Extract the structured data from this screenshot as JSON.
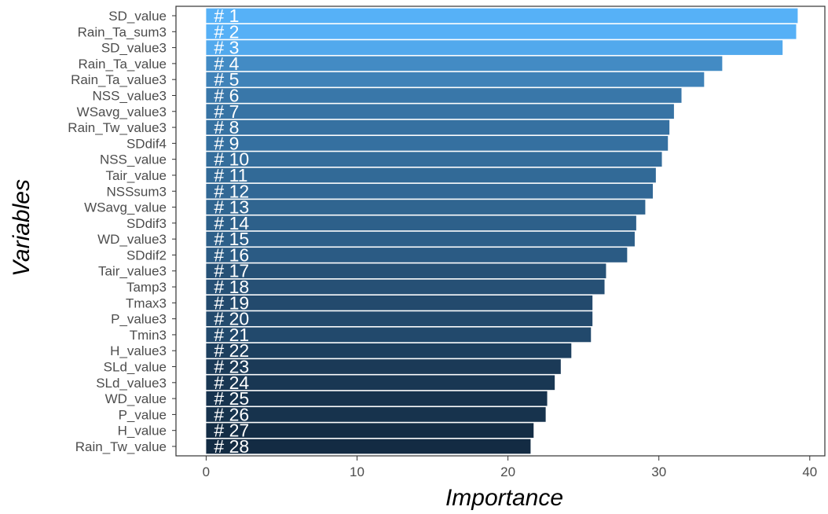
{
  "chart_data": {
    "type": "bar",
    "orientation": "horizontal",
    "xlabel": "Importance",
    "ylabel": "Variables",
    "xlim": [
      -2,
      41
    ],
    "xticks": [
      0,
      10,
      20,
      30,
      40
    ],
    "grid": false,
    "legend": "none",
    "bar_color_scale": {
      "low": "#132b43",
      "high": "#56b1f7"
    },
    "bars": [
      {
        "rank_label": "# 1",
        "category": "SD_value",
        "value": 39.2
      },
      {
        "rank_label": "# 2",
        "category": "Rain_Ta_sum3",
        "value": 39.1
      },
      {
        "rank_label": "# 3",
        "category": "SD_value3",
        "value": 38.2
      },
      {
        "rank_label": "# 4",
        "category": "Rain_Ta_value",
        "value": 34.2
      },
      {
        "rank_label": "# 5",
        "category": "Rain_Ta_value3",
        "value": 33.0
      },
      {
        "rank_label": "# 6",
        "category": "NSS_value3",
        "value": 31.5
      },
      {
        "rank_label": "# 7",
        "category": "WSavg_value3",
        "value": 31.0
      },
      {
        "rank_label": "# 8",
        "category": "Rain_Tw_value3",
        "value": 30.7
      },
      {
        "rank_label": "# 9",
        "category": "SDdif4",
        "value": 30.6
      },
      {
        "rank_label": "# 10",
        "category": "NSS_value",
        "value": 30.2
      },
      {
        "rank_label": "# 11",
        "category": "Tair_value",
        "value": 29.8
      },
      {
        "rank_label": "# 12",
        "category": "NSSsum3",
        "value": 29.6
      },
      {
        "rank_label": "# 13",
        "category": "WSavg_value",
        "value": 29.1
      },
      {
        "rank_label": "# 14",
        "category": "SDdif3",
        "value": 28.5
      },
      {
        "rank_label": "# 15",
        "category": "WD_value3",
        "value": 28.4
      },
      {
        "rank_label": "# 16",
        "category": "SDdif2",
        "value": 27.9
      },
      {
        "rank_label": "# 17",
        "category": "Tair_value3",
        "value": 26.5
      },
      {
        "rank_label": "# 18",
        "category": "Tamp3",
        "value": 26.4
      },
      {
        "rank_label": "# 19",
        "category": "Tmax3",
        "value": 25.6
      },
      {
        "rank_label": "# 20",
        "category": "P_value3",
        "value": 25.6
      },
      {
        "rank_label": "# 21",
        "category": "Tmin3",
        "value": 25.5
      },
      {
        "rank_label": "# 22",
        "category": "H_value3",
        "value": 24.2
      },
      {
        "rank_label": "# 23",
        "category": "SLd_value",
        "value": 23.5
      },
      {
        "rank_label": "# 24",
        "category": "SLd_value3",
        "value": 23.1
      },
      {
        "rank_label": "# 25",
        "category": "WD_value",
        "value": 22.6
      },
      {
        "rank_label": "# 26",
        "category": "P_value",
        "value": 22.5
      },
      {
        "rank_label": "# 27",
        "category": "H_value",
        "value": 21.7
      },
      {
        "rank_label": "# 28",
        "category": "Rain_Tw_value",
        "value": 21.5
      }
    ]
  }
}
